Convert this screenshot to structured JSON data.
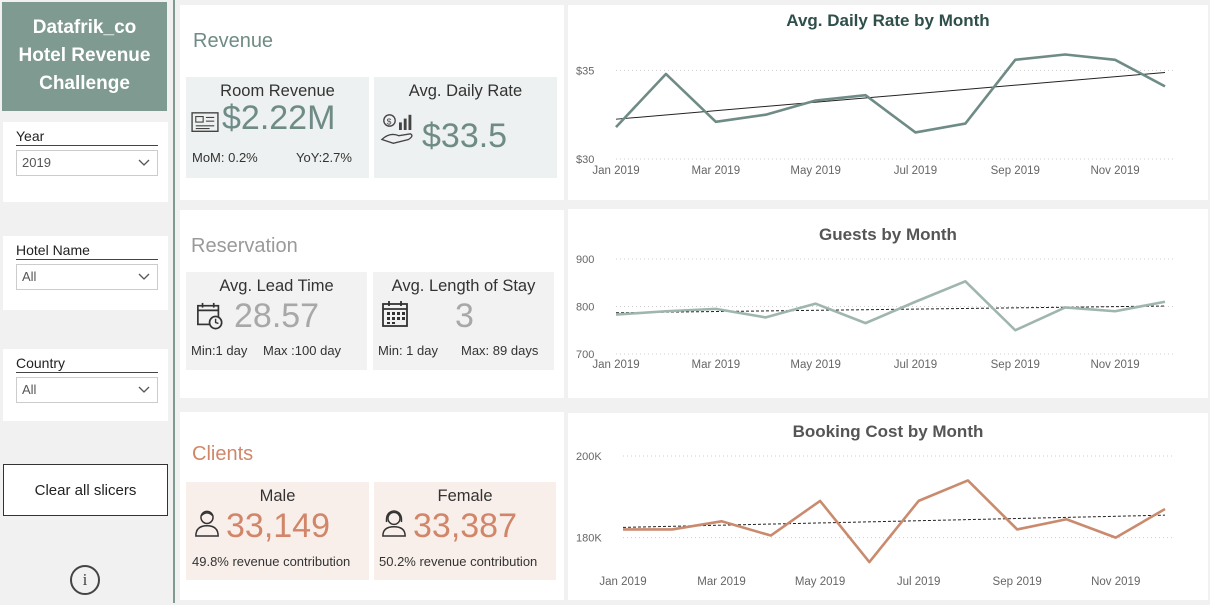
{
  "sidebar": {
    "title_lines": [
      "Datafrik_co",
      "Hotel Revenue",
      "Challenge"
    ],
    "slicers": [
      {
        "label": "Year",
        "value": "2019"
      },
      {
        "label": "Hotel Name",
        "value": "All"
      },
      {
        "label": "Country",
        "value": "All"
      }
    ],
    "clear_label": "Clear all slicers",
    "info_label": "i"
  },
  "revenue": {
    "title": "Revenue",
    "room_revenue": {
      "label": "Room Revenue",
      "value": "$2.22M",
      "mom": "MoM: 0.2%",
      "yoy": "YoY:2.7%"
    },
    "adr": {
      "label": "Avg. Daily Rate",
      "value": "$33.5"
    }
  },
  "reservation": {
    "title": "Reservation",
    "lead": {
      "label": "Avg. Lead Time",
      "value": "28.57",
      "min": "Min:1 day",
      "max": "Max :100 day"
    },
    "stay": {
      "label": "Avg. Length of Stay",
      "value": "3",
      "min": "Min: 1 day",
      "max": "Max: 89 days"
    }
  },
  "clients": {
    "title": "Clients",
    "male": {
      "label": "Male",
      "value": "33,149",
      "contribution": "49.8% revenue contribution"
    },
    "female": {
      "label": "Female",
      "value": "33,387",
      "contribution": "50.2% revenue contribution"
    }
  },
  "colors": {
    "sidebar_accent": "#7f9a90",
    "adr_line": "#6f8b85",
    "guests_line": "#9fb6ad",
    "booking_line": "#c98a6e",
    "clients_accent": "#d1866a",
    "adr_value": "#6f8b85",
    "reservation_value": "#a0a0a0"
  },
  "chart_data": [
    {
      "type": "line",
      "title": "Avg. Daily Rate by Month",
      "x": [
        "Jan 2019",
        "Feb 2019",
        "Mar 2019",
        "Apr 2019",
        "May 2019",
        "Jun 2019",
        "Jul 2019",
        "Aug 2019",
        "Sep 2019",
        "Oct 2019",
        "Nov 2019",
        "Dec 2019"
      ],
      "x_tick_labels": [
        "Jan 2019",
        "Mar 2019",
        "May 2019",
        "Jul 2019",
        "Sep 2019",
        "Nov 2019"
      ],
      "y_ticks": [
        "$30",
        "$35"
      ],
      "ylim": [
        30,
        37
      ],
      "values": [
        31.8,
        34.8,
        32.1,
        32.5,
        33.3,
        33.6,
        31.5,
        32.0,
        35.6,
        35.9,
        35.6,
        34.1
      ],
      "trendline": true
    },
    {
      "type": "line",
      "title": "Guests by Month",
      "x": [
        "Jan 2019",
        "Feb 2019",
        "Mar 2019",
        "Apr 2019",
        "May 2019",
        "Jun 2019",
        "Jul 2019",
        "Aug 2019",
        "Sep 2019",
        "Oct 2019",
        "Nov 2019",
        "Dec 2019"
      ],
      "x_tick_labels": [
        "Jan 2019",
        "Mar 2019",
        "May 2019",
        "Jul 2019",
        "Sep 2019",
        "Nov 2019"
      ],
      "y_ticks": [
        "700",
        "800",
        "900"
      ],
      "ylim": [
        700,
        900
      ],
      "values": [
        783,
        790,
        795,
        777,
        806,
        765,
        810,
        853,
        750,
        798,
        790,
        810
      ],
      "trendline": true
    },
    {
      "type": "line",
      "title": "Booking Cost by Month",
      "x": [
        "Jan 2019",
        "Feb 2019",
        "Mar 2019",
        "Apr 2019",
        "May 2019",
        "Jun 2019",
        "Jul 2019",
        "Aug 2019",
        "Sep 2019",
        "Oct 2019",
        "Nov 2019",
        "Dec 2019"
      ],
      "x_tick_labels": [
        "Jan 2019",
        "Mar 2019",
        "May 2019",
        "Jul 2019",
        "Sep 2019",
        "Nov 2019"
      ],
      "y_ticks": [
        "180K",
        "200K"
      ],
      "ylim": [
        175,
        200
      ],
      "values": [
        182,
        182,
        184,
        180.5,
        189,
        174,
        189,
        194,
        182,
        184.5,
        180,
        187
      ],
      "trendline": true
    }
  ]
}
